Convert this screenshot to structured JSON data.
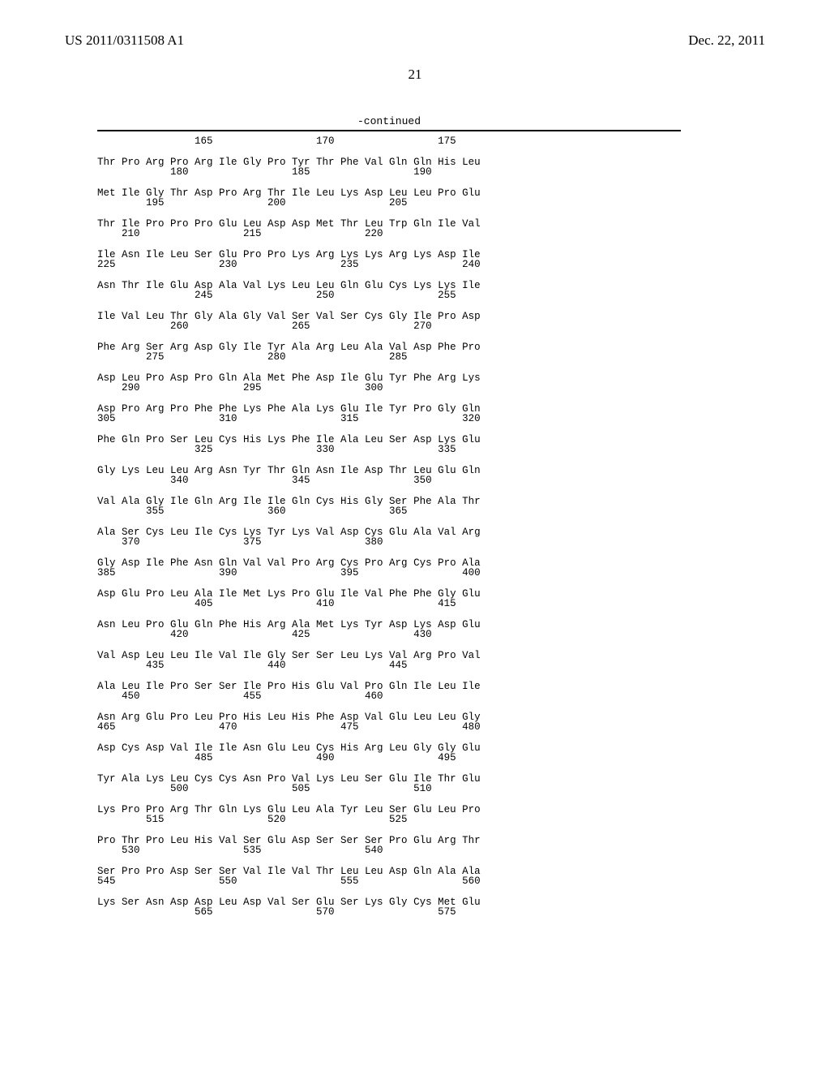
{
  "header": {
    "pub_number": "US 2011/0311508 A1",
    "pub_date": "Dec. 22, 2011"
  },
  "page_number": "21",
  "continued_label": "-continued",
  "sequence": {
    "font": "Courier",
    "font_size_pt": 9,
    "blocks": [
      {
        "aa": "                165                 170                 175",
        "pos": ""
      },
      {
        "aa": "Thr Pro Arg Pro Arg Ile Gly Pro Tyr Thr Phe Val Gln Gln His Leu",
        "pos": "            180                 185                 190"
      },
      {
        "aa": "Met Ile Gly Thr Asp Pro Arg Thr Ile Leu Lys Asp Leu Leu Pro Glu",
        "pos": "        195                 200                 205"
      },
      {
        "aa": "Thr Ile Pro Pro Pro Glu Leu Asp Asp Met Thr Leu Trp Gln Ile Val",
        "pos": "    210                 215                 220"
      },
      {
        "aa": "Ile Asn Ile Leu Ser Glu Pro Pro Lys Arg Lys Lys Arg Lys Asp Ile",
        "pos": "225                 230                 235                 240"
      },
      {
        "aa": "Asn Thr Ile Glu Asp Ala Val Lys Leu Leu Gln Glu Cys Lys Lys Ile",
        "pos": "                245                 250                 255"
      },
      {
        "aa": "Ile Val Leu Thr Gly Ala Gly Val Ser Val Ser Cys Gly Ile Pro Asp",
        "pos": "            260                 265                 270"
      },
      {
        "aa": "Phe Arg Ser Arg Asp Gly Ile Tyr Ala Arg Leu Ala Val Asp Phe Pro",
        "pos": "        275                 280                 285"
      },
      {
        "aa": "Asp Leu Pro Asp Pro Gln Ala Met Phe Asp Ile Glu Tyr Phe Arg Lys",
        "pos": "    290                 295                 300"
      },
      {
        "aa": "Asp Pro Arg Pro Phe Phe Lys Phe Ala Lys Glu Ile Tyr Pro Gly Gln",
        "pos": "305                 310                 315                 320"
      },
      {
        "aa": "Phe Gln Pro Ser Leu Cys His Lys Phe Ile Ala Leu Ser Asp Lys Glu",
        "pos": "                325                 330                 335"
      },
      {
        "aa": "Gly Lys Leu Leu Arg Asn Tyr Thr Gln Asn Ile Asp Thr Leu Glu Gln",
        "pos": "            340                 345                 350"
      },
      {
        "aa": "Val Ala Gly Ile Gln Arg Ile Ile Gln Cys His Gly Ser Phe Ala Thr",
        "pos": "        355                 360                 365"
      },
      {
        "aa": "Ala Ser Cys Leu Ile Cys Lys Tyr Lys Val Asp Cys Glu Ala Val Arg",
        "pos": "    370                 375                 380"
      },
      {
        "aa": "Gly Asp Ile Phe Asn Gln Val Val Pro Arg Cys Pro Arg Cys Pro Ala",
        "pos": "385                 390                 395                 400"
      },
      {
        "aa": "Asp Glu Pro Leu Ala Ile Met Lys Pro Glu Ile Val Phe Phe Gly Glu",
        "pos": "                405                 410                 415"
      },
      {
        "aa": "Asn Leu Pro Glu Gln Phe His Arg Ala Met Lys Tyr Asp Lys Asp Glu",
        "pos": "            420                 425                 430"
      },
      {
        "aa": "Val Asp Leu Leu Ile Val Ile Gly Ser Ser Leu Lys Val Arg Pro Val",
        "pos": "        435                 440                 445"
      },
      {
        "aa": "Ala Leu Ile Pro Ser Ser Ile Pro His Glu Val Pro Gln Ile Leu Ile",
        "pos": "    450                 455                 460"
      },
      {
        "aa": "Asn Arg Glu Pro Leu Pro His Leu His Phe Asp Val Glu Leu Leu Gly",
        "pos": "465                 470                 475                 480"
      },
      {
        "aa": "Asp Cys Asp Val Ile Ile Asn Glu Leu Cys His Arg Leu Gly Gly Glu",
        "pos": "                485                 490                 495"
      },
      {
        "aa": "Tyr Ala Lys Leu Cys Cys Asn Pro Val Lys Leu Ser Glu Ile Thr Glu",
        "pos": "            500                 505                 510"
      },
      {
        "aa": "Lys Pro Pro Arg Thr Gln Lys Glu Leu Ala Tyr Leu Ser Glu Leu Pro",
        "pos": "        515                 520                 525"
      },
      {
        "aa": "Pro Thr Pro Leu His Val Ser Glu Asp Ser Ser Ser Pro Glu Arg Thr",
        "pos": "    530                 535                 540"
      },
      {
        "aa": "Ser Pro Pro Asp Ser Ser Val Ile Val Thr Leu Leu Asp Gln Ala Ala",
        "pos": "545                 550                 555                 560"
      },
      {
        "aa": "Lys Ser Asn Asp Asp Leu Asp Val Ser Glu Ser Lys Gly Cys Met Glu",
        "pos": "                565                 570                 575"
      }
    ]
  }
}
